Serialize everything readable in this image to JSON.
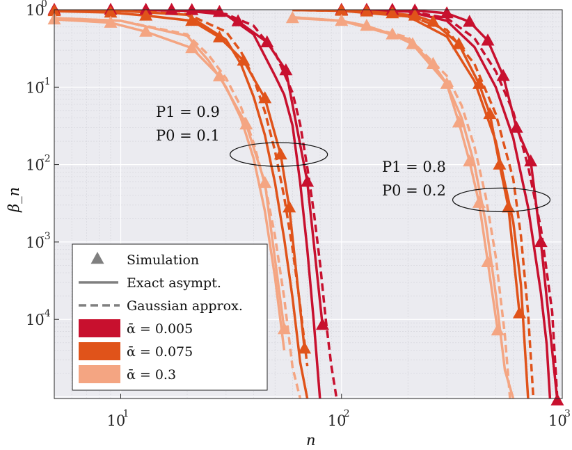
{
  "chart_data": {
    "type": "line",
    "xlabel": "n",
    "ylabel": "β_n",
    "x_scale": "log",
    "y_scale": "log",
    "xlim": [
      5,
      1000
    ],
    "ylim": [
      9.5e-06,
      1.0
    ],
    "grid": true,
    "x_ticks": [
      {
        "value": 10,
        "base": "10",
        "exp": "1"
      },
      {
        "value": 100,
        "base": "10",
        "exp": "2"
      },
      {
        "value": 1000,
        "base": "10",
        "exp": "3"
      }
    ],
    "y_ticks": [
      {
        "value": 1,
        "base": "10",
        "exp": "0"
      },
      {
        "value": 0.1,
        "base": "10",
        "exp": "-1"
      },
      {
        "value": 0.01,
        "base": "10",
        "exp": "-2"
      },
      {
        "value": 0.001,
        "base": "10",
        "exp": "-3"
      },
      {
        "value": 0.0001,
        "base": "10",
        "exp": "-4"
      }
    ],
    "colors": {
      "a0005": "#c8102e",
      "a0075": "#e0531a",
      "a03": "#f4a582"
    },
    "legend": {
      "placement": "bottom-left",
      "entries": [
        {
          "key": "sim",
          "label": "Simulation"
        },
        {
          "key": "exact",
          "label": "Exact asympt."
        },
        {
          "key": "gauss",
          "label": "Gaussian approx."
        },
        {
          "key": "a0005",
          "label": "ᾱ = 0.005"
        },
        {
          "key": "a0075",
          "label": "ᾱ = 0.075"
        },
        {
          "key": "a03",
          "label": "ᾱ = 0.3"
        }
      ]
    },
    "annotations": [
      {
        "line1": "P1 = 0.9",
        "line2": "P0 = 0.1"
      },
      {
        "line1": "P1 = 0.8",
        "line2": "P0 = 0.2"
      }
    ],
    "ellipses": [
      {
        "x": 52,
        "y": 0.0135
      },
      {
        "x": 530,
        "y": 0.0035
      }
    ],
    "series": [
      {
        "group": "P1=0.9,P0=0.1",
        "alpha": "a0005",
        "kind": "exact",
        "x": [
          5,
          10,
          20,
          30,
          40,
          50,
          55,
          60,
          65,
          70,
          75,
          80
        ],
        "y": [
          1.0,
          0.995,
          0.97,
          0.86,
          0.48,
          0.14,
          0.08,
          0.032,
          0.0058,
          0.0008,
          9e-05,
          9e-06
        ]
      },
      {
        "group": "P1=0.9,P0=0.1",
        "alpha": "a0005",
        "kind": "gauss",
        "x": [
          5,
          10,
          20,
          30,
          40,
          50,
          55,
          60,
          65,
          70,
          75,
          80,
          85,
          90,
          95
        ],
        "y": [
          1.0,
          0.995,
          0.975,
          0.88,
          0.62,
          0.28,
          0.15,
          0.085,
          0.033,
          0.0092,
          0.0024,
          0.00052,
          9.5e-05,
          2.5e-05,
          9.5e-06
        ]
      },
      {
        "group": "P1=0.9,P0=0.1",
        "alpha": "a0005",
        "kind": "sim",
        "x": [
          5,
          9,
          13,
          17,
          21,
          28,
          34,
          46,
          56,
          70,
          82
        ],
        "y": [
          1.0,
          1.0,
          1.0,
          1.0,
          0.99,
          0.94,
          0.71,
          0.38,
          0.165,
          0.006,
          8.5e-05
        ]
      },
      {
        "group": "P1=0.9,P0=0.1",
        "alpha": "a0075",
        "kind": "exact",
        "x": [
          5,
          10,
          20,
          30,
          35,
          40,
          45,
          50,
          55,
          60,
          65,
          70
        ],
        "y": [
          0.99,
          0.97,
          0.86,
          0.41,
          0.2,
          0.075,
          0.024,
          0.0058,
          0.0011,
          0.00019,
          2.8e-05,
          9.5e-06
        ]
      },
      {
        "group": "P1=0.9,P0=0.1",
        "alpha": "a0075",
        "kind": "gauss",
        "x": [
          5,
          10,
          20,
          30,
          35,
          40,
          45,
          50,
          55,
          60,
          65,
          70
        ],
        "y": [
          0.99,
          0.97,
          0.88,
          0.52,
          0.29,
          0.13,
          0.048,
          0.015,
          0.0038,
          0.00082,
          0.00015,
          2.5e-05
        ]
      },
      {
        "group": "P1=0.9,P0=0.1",
        "alpha": "a0075",
        "kind": "sim",
        "x": [
          5,
          9,
          13,
          21,
          28,
          36,
          45,
          53,
          58,
          68
        ],
        "y": [
          0.96,
          0.92,
          0.84,
          0.72,
          0.44,
          0.22,
          0.072,
          0.0135,
          0.0028,
          4.2e-05
        ]
      },
      {
        "group": "P1=0.9,P0=0.1",
        "alpha": "a03",
        "kind": "exact",
        "x": [
          5,
          10,
          20,
          25,
          30,
          35,
          40,
          45,
          50,
          55
        ],
        "y": [
          0.78,
          0.72,
          0.46,
          0.22,
          0.1,
          0.04,
          0.012,
          0.0025,
          0.00035,
          4e-05
        ]
      },
      {
        "group": "P1=0.9,P0=0.1",
        "alpha": "a03",
        "kind": "gauss",
        "x": [
          5,
          10,
          20,
          25,
          30,
          35,
          40,
          45,
          50,
          55,
          60,
          65
        ],
        "y": [
          0.78,
          0.72,
          0.48,
          0.26,
          0.13,
          0.056,
          0.019,
          0.0055,
          0.0012,
          0.00019,
          2.4e-05,
          9.5e-06
        ]
      },
      {
        "group": "P1=0.9,P0=0.1",
        "alpha": "a03",
        "kind": "sim",
        "x": [
          5,
          9,
          13,
          21,
          28,
          37,
          45,
          55
        ],
        "y": [
          0.75,
          0.68,
          0.52,
          0.32,
          0.138,
          0.033,
          0.0058,
          7.5e-05
        ]
      },
      {
        "group": "P1=0.8,P0=0.2",
        "alpha": "a0005",
        "kind": "exact",
        "x": [
          60,
          100,
          200,
          300,
          400,
          500,
          600,
          700,
          800,
          850,
          880
        ],
        "y": [
          1.0,
          0.995,
          0.95,
          0.72,
          0.33,
          0.1,
          0.022,
          0.0028,
          0.00022,
          4.8e-05,
          9.5e-06
        ]
      },
      {
        "group": "P1=0.8,P0=0.2",
        "alpha": "a0005",
        "kind": "gauss",
        "x": [
          60,
          100,
          200,
          300,
          400,
          500,
          600,
          700,
          800,
          900,
          950
        ],
        "y": [
          1.0,
          0.995,
          0.96,
          0.78,
          0.43,
          0.16,
          0.048,
          0.0095,
          0.0015,
          0.000125,
          9.5e-06
        ]
      },
      {
        "group": "P1=0.8,P0=0.2",
        "alpha": "a0005",
        "kind": "sim",
        "x": [
          100,
          130,
          170,
          215,
          300,
          380,
          460,
          540,
          620,
          720,
          800,
          950
        ],
        "y": [
          1.0,
          1.0,
          1.0,
          0.98,
          0.9,
          0.7,
          0.4,
          0.14,
          0.03,
          0.011,
          0.001,
          9e-06
        ]
      },
      {
        "group": "P1=0.8,P0=0.2",
        "alpha": "a0075",
        "kind": "exact",
        "x": [
          60,
          100,
          200,
          300,
          400,
          500,
          600,
          650,
          700
        ],
        "y": [
          0.99,
          0.97,
          0.82,
          0.45,
          0.12,
          0.02,
          0.0018,
          0.00028,
          9.5e-06
        ]
      },
      {
        "group": "P1=0.8,P0=0.2",
        "alpha": "a0075",
        "kind": "gauss",
        "x": [
          60,
          100,
          200,
          300,
          400,
          500,
          600,
          650,
          700,
          740
        ],
        "y": [
          0.99,
          0.97,
          0.85,
          0.55,
          0.2,
          0.045,
          0.0065,
          0.0012,
          0.00012,
          9.5e-06
        ]
      },
      {
        "group": "P1=0.8,P0=0.2",
        "alpha": "a0075",
        "kind": "sim",
        "x": [
          100,
          130,
          170,
          215,
          260,
          340,
          420,
          470,
          520,
          570,
          640
        ],
        "y": [
          0.97,
          0.95,
          0.9,
          0.84,
          0.7,
          0.36,
          0.11,
          0.045,
          0.01,
          0.0028,
          0.00012
        ]
      },
      {
        "group": "P1=0.8,P0=0.2",
        "alpha": "a03",
        "kind": "exact",
        "x": [
          60,
          100,
          200,
          300,
          350,
          400,
          450,
          500,
          550,
          600
        ],
        "y": [
          0.8,
          0.72,
          0.42,
          0.11,
          0.04,
          0.01,
          0.0018,
          0.00021,
          2.2e-05,
          9.5e-06
        ]
      },
      {
        "group": "P1=0.8,P0=0.2",
        "alpha": "a03",
        "kind": "gauss",
        "x": [
          60,
          100,
          200,
          300,
          350,
          400,
          450,
          500,
          550,
          580
        ],
        "y": [
          0.8,
          0.72,
          0.44,
          0.14,
          0.058,
          0.017,
          0.0039,
          0.00064,
          6.2e-05,
          9.5e-06
        ]
      },
      {
        "group": "P1=0.8,P0=0.2",
        "alpha": "a03",
        "kind": "sim",
        "x": [
          60,
          100,
          130,
          170,
          210,
          260,
          300,
          340,
          380,
          420,
          460,
          510
        ],
        "y": [
          0.78,
          0.72,
          0.62,
          0.48,
          0.36,
          0.2,
          0.11,
          0.035,
          0.011,
          0.0032,
          0.00055,
          7.2e-05
        ]
      }
    ]
  }
}
